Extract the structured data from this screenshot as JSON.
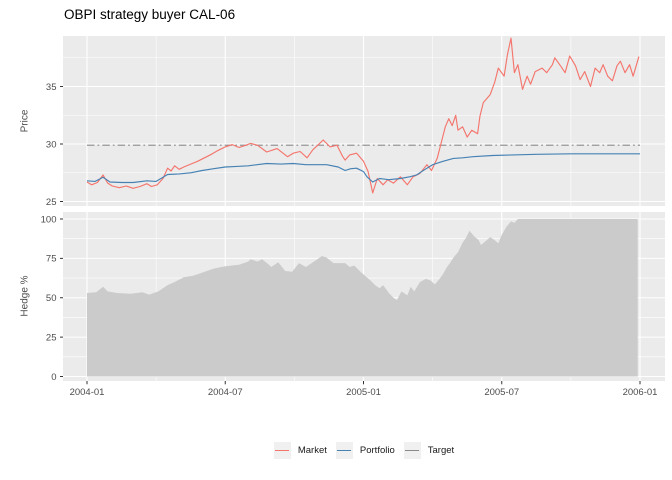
{
  "title": "OBPI strategy buyer CAL-06",
  "colors": {
    "background": "#FFFFFF",
    "panel_background": "#EBEBEB",
    "gridline": "#FFFFFF",
    "tick_text": "#4D4D4D",
    "tick_mark": "#333333",
    "legend_key_background": "#F0F0F0",
    "market": "#F4756C",
    "portfolio": "#4682B4",
    "target": "#8A8A8A",
    "hedge_area": "#CBCBCB"
  },
  "chart_data": {
    "type": "line",
    "title": "OBPI strategy buyer CAL-06",
    "grid": true,
    "x_axis": {
      "unit": "months since 2004-01",
      "domain": [
        0,
        24
      ],
      "tick_months": [
        0,
        6,
        12,
        18,
        24
      ],
      "tick_labels": [
        "2004-01",
        "2004-07",
        "2005-01",
        "2005-07",
        "2006-01"
      ],
      "minor_months": [
        3,
        9,
        15,
        21
      ]
    },
    "panels": [
      {
        "name": "price",
        "ylabel": "Price",
        "ylim": [
          24.6,
          39.4
        ],
        "yticks": [
          25,
          30,
          35
        ],
        "yminor": [
          27.5,
          32.5,
          37.5
        ]
      },
      {
        "name": "hedge",
        "ylabel": "Hedge %",
        "ylim": [
          -2.9,
          104.5
        ],
        "yticks": [
          0,
          25,
          50,
          75,
          100
        ],
        "yminor": [
          12.5,
          37.5,
          62.5,
          87.5
        ]
      }
    ],
    "legend": {
      "position": "bottom",
      "entries": [
        {
          "label": "Market",
          "color": "#F4756C"
        },
        {
          "label": "Portfolio",
          "color": "#4682B4"
        },
        {
          "label": "Target",
          "color": "#8A8A8A"
        }
      ]
    },
    "series": [
      {
        "name": "Hedge",
        "panel": "hedge",
        "type": "area",
        "color": "#CBCBCB",
        "points": [
          [
            0,
            53
          ],
          [
            0.4,
            53.5
          ],
          [
            0.7,
            57
          ],
          [
            0.9,
            54
          ],
          [
            1.3,
            53
          ],
          [
            1.9,
            52.5
          ],
          [
            2.4,
            53.5
          ],
          [
            2.7,
            52
          ],
          [
            3.1,
            54
          ],
          [
            3.5,
            58
          ],
          [
            3.8,
            60
          ],
          [
            4.2,
            63
          ],
          [
            4.6,
            64
          ],
          [
            5.0,
            66
          ],
          [
            5.5,
            68.5
          ],
          [
            6.0,
            70
          ],
          [
            6.6,
            71
          ],
          [
            7.0,
            73
          ],
          [
            7.1,
            74.5
          ],
          [
            7.4,
            73
          ],
          [
            7.6,
            74.5
          ],
          [
            7.9,
            71
          ],
          [
            8.0,
            69.5
          ],
          [
            8.3,
            72.5
          ],
          [
            8.6,
            67
          ],
          [
            8.9,
            66.5
          ],
          [
            9.2,
            72
          ],
          [
            9.5,
            69.5
          ],
          [
            9.9,
            73.5
          ],
          [
            10.2,
            76.5
          ],
          [
            10.4,
            75.5
          ],
          [
            10.7,
            72
          ],
          [
            11.2,
            72
          ],
          [
            11.4,
            69.5
          ],
          [
            11.6,
            70.5
          ],
          [
            11.8,
            67.5
          ],
          [
            12.1,
            63.5
          ],
          [
            12.3,
            61
          ],
          [
            12.5,
            58
          ],
          [
            12.7,
            56
          ],
          [
            12.85,
            58
          ],
          [
            13.1,
            53
          ],
          [
            13.3,
            50
          ],
          [
            13.45,
            48.5
          ],
          [
            13.65,
            54
          ],
          [
            13.9,
            51.5
          ],
          [
            14.05,
            57
          ],
          [
            14.2,
            54
          ],
          [
            14.45,
            60
          ],
          [
            14.7,
            62
          ],
          [
            14.9,
            61
          ],
          [
            15.1,
            58.5
          ],
          [
            15.3,
            62
          ],
          [
            15.45,
            65
          ],
          [
            15.6,
            69
          ],
          [
            15.75,
            72
          ],
          [
            15.9,
            75.5
          ],
          [
            16.1,
            79
          ],
          [
            16.3,
            85
          ],
          [
            16.45,
            88
          ],
          [
            16.6,
            92.5
          ],
          [
            16.8,
            89
          ],
          [
            17.0,
            86.5
          ],
          [
            17.1,
            83.5
          ],
          [
            17.3,
            86
          ],
          [
            17.5,
            88.5
          ],
          [
            17.7,
            86.5
          ],
          [
            17.85,
            84.5
          ],
          [
            18.0,
            90
          ],
          [
            18.2,
            95
          ],
          [
            18.4,
            98.5
          ],
          [
            18.55,
            97.5
          ],
          [
            18.7,
            100
          ],
          [
            23.9,
            100
          ]
        ]
      },
      {
        "name": "Target",
        "panel": "price",
        "type": "line",
        "style": "dashdot",
        "color": "#8A8A8A",
        "points": [
          [
            0,
            29.9
          ],
          [
            24,
            29.9
          ]
        ]
      },
      {
        "name": "Market",
        "panel": "price",
        "type": "line",
        "style": "solid",
        "color": "#F4756C",
        "points": [
          [
            0,
            26.7
          ],
          [
            0.2,
            26.45
          ],
          [
            0.45,
            26.65
          ],
          [
            0.7,
            27.3
          ],
          [
            0.9,
            26.6
          ],
          [
            1.1,
            26.35
          ],
          [
            1.4,
            26.2
          ],
          [
            1.7,
            26.35
          ],
          [
            2.0,
            26.15
          ],
          [
            2.3,
            26.3
          ],
          [
            2.6,
            26.55
          ],
          [
            2.8,
            26.3
          ],
          [
            3.05,
            26.45
          ],
          [
            3.3,
            27.0
          ],
          [
            3.5,
            27.9
          ],
          [
            3.65,
            27.65
          ],
          [
            3.8,
            28.1
          ],
          [
            4.0,
            27.8
          ],
          [
            4.2,
            28.0
          ],
          [
            4.5,
            28.25
          ],
          [
            4.8,
            28.5
          ],
          [
            5.1,
            28.8
          ],
          [
            5.4,
            29.1
          ],
          [
            5.7,
            29.45
          ],
          [
            6.0,
            29.75
          ],
          [
            6.3,
            29.95
          ],
          [
            6.6,
            29.7
          ],
          [
            6.9,
            29.9
          ],
          [
            7.1,
            30.05
          ],
          [
            7.4,
            29.9
          ],
          [
            7.8,
            29.3
          ],
          [
            8.25,
            29.6
          ],
          [
            8.7,
            28.9
          ],
          [
            8.95,
            29.2
          ],
          [
            9.25,
            29.35
          ],
          [
            9.55,
            28.8
          ],
          [
            9.8,
            29.5
          ],
          [
            10.1,
            30.05
          ],
          [
            10.25,
            30.35
          ],
          [
            10.55,
            29.75
          ],
          [
            10.85,
            29.9
          ],
          [
            11.1,
            28.9
          ],
          [
            11.2,
            28.6
          ],
          [
            11.4,
            29.05
          ],
          [
            11.7,
            29.2
          ],
          [
            12.0,
            28.5
          ],
          [
            12.2,
            27.6
          ],
          [
            12.4,
            25.75
          ],
          [
            12.6,
            27.0
          ],
          [
            12.85,
            26.45
          ],
          [
            13.05,
            26.9
          ],
          [
            13.3,
            26.6
          ],
          [
            13.6,
            27.15
          ],
          [
            13.9,
            26.45
          ],
          [
            14.15,
            27.15
          ],
          [
            14.45,
            27.45
          ],
          [
            14.75,
            28.2
          ],
          [
            14.95,
            27.7
          ],
          [
            15.2,
            28.75
          ],
          [
            15.4,
            30.3
          ],
          [
            15.55,
            31.5
          ],
          [
            15.7,
            32.2
          ],
          [
            15.85,
            31.6
          ],
          [
            16.0,
            32.5
          ],
          [
            16.1,
            31.2
          ],
          [
            16.3,
            31.5
          ],
          [
            16.5,
            30.6
          ],
          [
            16.7,
            31.2
          ],
          [
            16.95,
            30.9
          ],
          [
            17.05,
            32.4
          ],
          [
            17.2,
            33.6
          ],
          [
            17.5,
            34.3
          ],
          [
            17.7,
            35.4
          ],
          [
            17.85,
            36.6
          ],
          [
            18.1,
            35.9
          ],
          [
            18.25,
            37.8
          ],
          [
            18.4,
            39.2
          ],
          [
            18.55,
            36.2
          ],
          [
            18.7,
            36.9
          ],
          [
            18.9,
            34.75
          ],
          [
            19.1,
            35.9
          ],
          [
            19.25,
            35.2
          ],
          [
            19.45,
            36.3
          ],
          [
            19.75,
            36.6
          ],
          [
            19.95,
            36.2
          ],
          [
            20.2,
            36.9
          ],
          [
            20.3,
            37.5
          ],
          [
            20.55,
            36.8
          ],
          [
            20.75,
            36.2
          ],
          [
            20.95,
            37.65
          ],
          [
            21.2,
            36.8
          ],
          [
            21.4,
            35.6
          ],
          [
            21.6,
            36.3
          ],
          [
            21.85,
            35.0
          ],
          [
            22.05,
            36.6
          ],
          [
            22.25,
            36.2
          ],
          [
            22.4,
            36.9
          ],
          [
            22.6,
            35.9
          ],
          [
            22.8,
            35.5
          ],
          [
            23.0,
            36.8
          ],
          [
            23.15,
            37.2
          ],
          [
            23.35,
            36.2
          ],
          [
            23.55,
            36.9
          ],
          [
            23.7,
            35.9
          ],
          [
            23.95,
            37.6
          ]
        ]
      },
      {
        "name": "Portfolio",
        "panel": "price",
        "type": "line",
        "style": "solid",
        "color": "#4682B4",
        "points": [
          [
            0,
            26.8
          ],
          [
            0.35,
            26.75
          ],
          [
            0.7,
            27.1
          ],
          [
            1.0,
            26.7
          ],
          [
            1.5,
            26.65
          ],
          [
            2.0,
            26.65
          ],
          [
            2.6,
            26.8
          ],
          [
            3.0,
            26.75
          ],
          [
            3.3,
            27.1
          ],
          [
            3.5,
            27.35
          ],
          [
            4.0,
            27.4
          ],
          [
            4.5,
            27.5
          ],
          [
            5.0,
            27.7
          ],
          [
            5.5,
            27.85
          ],
          [
            6.0,
            28.0
          ],
          [
            6.5,
            28.05
          ],
          [
            7.0,
            28.1
          ],
          [
            7.8,
            28.3
          ],
          [
            8.4,
            28.25
          ],
          [
            8.95,
            28.3
          ],
          [
            9.5,
            28.2
          ],
          [
            10.4,
            28.2
          ],
          [
            10.9,
            28.0
          ],
          [
            11.2,
            27.7
          ],
          [
            11.45,
            27.85
          ],
          [
            11.7,
            27.9
          ],
          [
            12.0,
            27.6
          ],
          [
            12.15,
            27.15
          ],
          [
            12.4,
            26.7
          ],
          [
            12.7,
            27.0
          ],
          [
            13.1,
            26.9
          ],
          [
            13.6,
            27.0
          ],
          [
            14.0,
            27.15
          ],
          [
            14.3,
            27.3
          ],
          [
            14.75,
            27.9
          ],
          [
            15.0,
            28.2
          ],
          [
            15.45,
            28.5
          ],
          [
            15.9,
            28.75
          ],
          [
            16.3,
            28.8
          ],
          [
            16.75,
            28.9
          ],
          [
            17.6,
            29.0
          ],
          [
            18.5,
            29.05
          ],
          [
            19.5,
            29.1
          ],
          [
            21.0,
            29.15
          ],
          [
            24,
            29.15
          ]
        ]
      }
    ]
  }
}
